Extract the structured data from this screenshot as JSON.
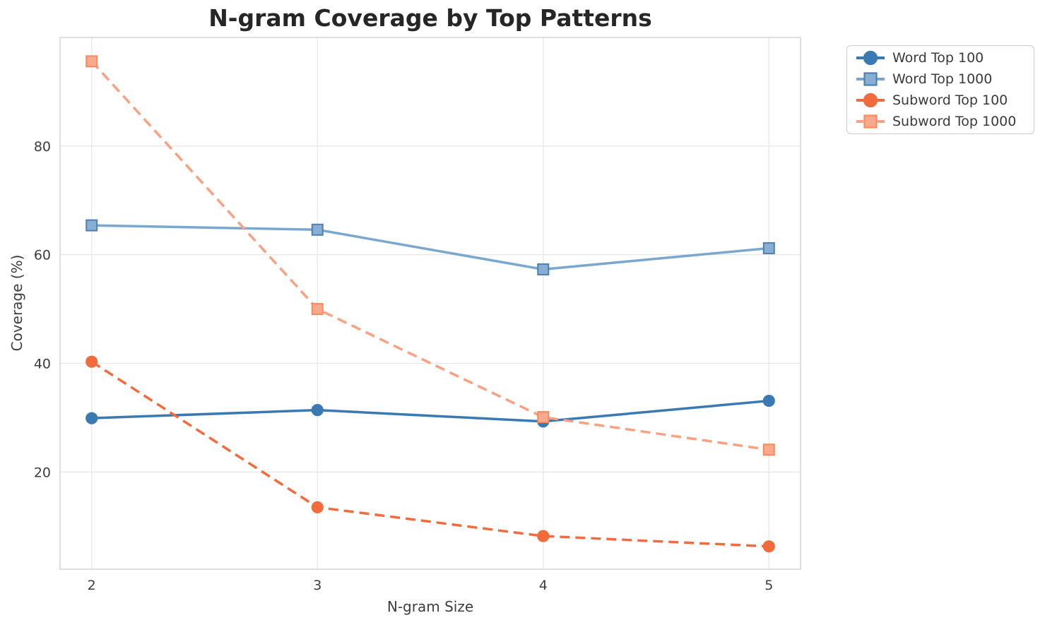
{
  "chart_data": {
    "type": "line",
    "title": "N-gram Coverage by Top Patterns",
    "xlabel": "N-gram Size",
    "ylabel": "Coverage (%)",
    "x": [
      2,
      3,
      4,
      5
    ],
    "xticks": [
      2,
      3,
      4,
      5
    ],
    "yticks": [
      20,
      40,
      60,
      80
    ],
    "xlim": [
      1.86,
      5.14
    ],
    "ylim": [
      2.1,
      100.0
    ],
    "grid": true,
    "legend_position": "outside-top-right",
    "background_color": "#ffffff",
    "series": [
      {
        "name": "Word Top 100",
        "values": [
          29.9,
          31.4,
          29.3,
          33.1
        ],
        "line_style": "solid",
        "marker": "circle",
        "color": "#3A79B2",
        "marker_fill": "#3A79B2",
        "marker_edge": "#3A79B2"
      },
      {
        "name": "Word Top 1000",
        "values": [
          65.4,
          64.6,
          57.3,
          61.2
        ],
        "line_style": "solid",
        "marker": "square",
        "color": "#79A7CE",
        "marker_fill": "#88AFD3",
        "marker_edge": "#4D80AF"
      },
      {
        "name": "Subword Top 100",
        "values": [
          40.3,
          13.5,
          8.2,
          6.3
        ],
        "line_style": "dashed",
        "marker": "circle",
        "color": "#F26B3C",
        "marker_fill": "#F26B3C",
        "marker_edge": "#F26B3C"
      },
      {
        "name": "Subword Top 1000",
        "values": [
          95.6,
          50.0,
          30.1,
          24.1
        ],
        "line_style": "dashed",
        "marker": "square",
        "color": "#F9A183",
        "marker_fill": "#FAA98D",
        "marker_edge": "#F68A5C"
      }
    ]
  }
}
